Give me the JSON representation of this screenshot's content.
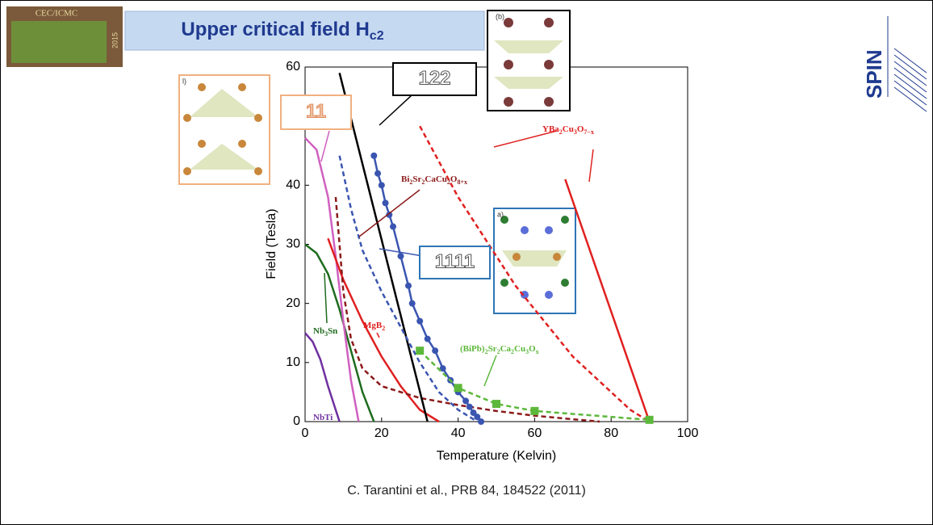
{
  "slide": {
    "title": "Upper critical field H",
    "title_sub": "c2",
    "citation": "C. Tarantini et al., PRB 84, 184522 (2011)",
    "logo_left": "CEC/ICMC",
    "logo_year": "2015",
    "logo_right": "SPIN"
  },
  "chart_data": {
    "type": "line",
    "xlabel": "Temperature (Kelvin)",
    "ylabel": "Field (Tesla)",
    "xlim": [
      0,
      100
    ],
    "ylim": [
      0,
      60
    ],
    "xticks": [
      0,
      20,
      40,
      60,
      80,
      100
    ],
    "yticks": [
      0,
      10,
      20,
      30,
      40,
      50,
      60
    ],
    "series": [
      {
        "color": "#7030a0",
        "dash": false,
        "x": [
          0,
          2,
          4,
          6,
          8,
          9
        ],
        "values": [
          15,
          13.5,
          10.5,
          6,
          2,
          0
        ]
      },
      {
        "color": "#1e6b1e",
        "dash": false,
        "x": [
          0,
          3,
          6,
          9,
          12,
          15,
          18
        ],
        "values": [
          30,
          28.5,
          25,
          19,
          12,
          5,
          0
        ]
      },
      {
        "color": "#d060c0",
        "dash": false,
        "x": [
          0,
          3,
          6,
          8,
          10,
          12,
          14
        ],
        "values": [
          48,
          46,
          38,
          28,
          17,
          7,
          0
        ]
      },
      {
        "color": "#e02020",
        "dash": false,
        "x": [
          6,
          10,
          15,
          20,
          25,
          30,
          35
        ],
        "values": [
          31,
          24,
          17,
          11,
          6,
          2,
          0
        ]
      },
      {
        "color": "#8b1a1a",
        "dash": true,
        "x": [
          8,
          9,
          10,
          12,
          15,
          20,
          30,
          40,
          50,
          60,
          70,
          77
        ],
        "values": [
          38,
          30,
          22,
          14,
          9,
          6,
          4,
          2.8,
          1.8,
          1,
          0.4,
          0
        ]
      },
      {
        "color": "#000000",
        "dash": false,
        "x": [
          9,
          32
        ],
        "values": [
          59,
          0
        ]
      },
      {
        "color": "#3a55b0",
        "dash": true,
        "x": [
          9,
          12,
          15,
          20,
          25,
          30,
          35,
          40,
          45
        ],
        "values": [
          45,
          36,
          29,
          22,
          16,
          10,
          5,
          2,
          0
        ]
      },
      {
        "color": "#3a55b0",
        "dash": false,
        "marker": "circle",
        "x": [
          18,
          19,
          20,
          21,
          22,
          23,
          25,
          27,
          28,
          30,
          32,
          34,
          36,
          38,
          40,
          42,
          43,
          44,
          45,
          46
        ],
        "values": [
          45,
          42,
          40,
          37,
          35,
          33,
          28,
          23,
          20,
          17,
          14,
          12,
          9,
          7,
          5,
          3.5,
          2.5,
          1.5,
          0.8,
          0
        ]
      },
      {
        "color": "#e02020",
        "dash": true,
        "x": [
          30,
          35,
          40,
          45,
          50,
          55,
          60,
          65,
          70,
          75,
          80,
          85,
          90
        ],
        "values": [
          50,
          44,
          38,
          33,
          28,
          23,
          19,
          15,
          11,
          8,
          5,
          2,
          0
        ]
      },
      {
        "color": "#e02020",
        "dash": false,
        "x": [
          68,
          90
        ],
        "values": [
          41,
          0
        ]
      },
      {
        "color": "#5cb83a",
        "dash": true,
        "marker": "square",
        "x": [
          30,
          40,
          50,
          60,
          90
        ],
        "values": [
          12,
          5.7,
          3,
          1.8,
          0.3
        ]
      }
    ],
    "annotations": [
      {
        "parts": [
          "NbTi"
        ],
        "color": "#7030a0"
      },
      {
        "parts": [
          "Nb",
          "3",
          "Sn"
        ],
        "color": "#1e6b1e"
      },
      {
        "parts": [
          "MgB",
          "2"
        ],
        "color": "#e02020"
      },
      {
        "parts": [
          "Bi",
          "2",
          "Sr",
          "2",
          "CaCu",
          "2",
          "O",
          "8+x"
        ],
        "color": "#8b1a1a"
      },
      {
        "parts": [
          "YBa",
          "2",
          "Cu",
          "3",
          "O",
          "7−x"
        ],
        "color": "#e02020"
      },
      {
        "parts": [
          "(BiPb)",
          "2",
          "Sr",
          "2",
          "Ca",
          "2",
          "Cu",
          "3",
          "O",
          "x"
        ],
        "color": "#5cb83a"
      }
    ],
    "boxes": [
      "122",
      "11",
      "1111"
    ],
    "insets": [
      "(b)",
      "a)",
      "l)"
    ]
  }
}
